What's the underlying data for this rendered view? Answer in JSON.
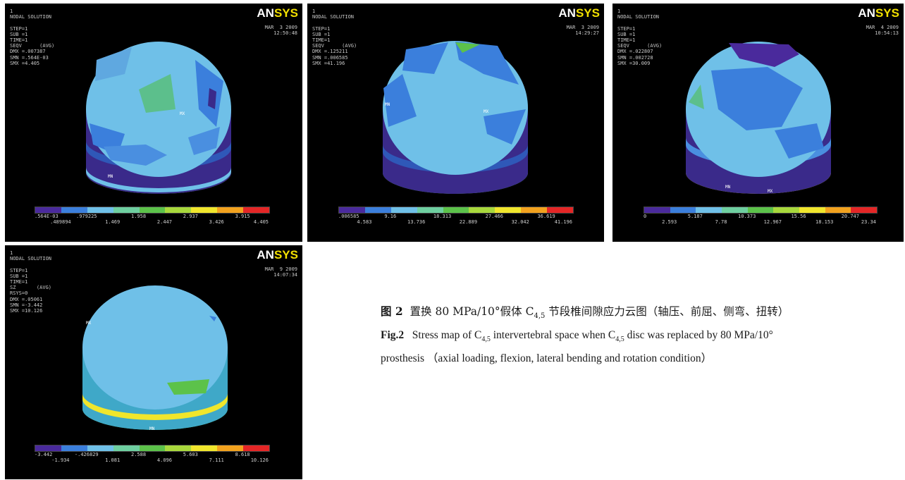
{
  "panels": [
    {
      "id": "p1",
      "info_lines": [
        "1",
        "NODAL SOLUTION",
        "",
        "STEP=1",
        "SUB =1",
        "TIME=1",
        "SEQV      (AVG)",
        "DMX =.007387",
        "SMN =.564E-03",
        "SMX =4.405"
      ],
      "date": [
        "MAR  3 2009",
        "12:50:48"
      ],
      "node_labels": [
        "MX",
        "MN"
      ],
      "legend_ticks_top": [
        ".564E-03",
        ".979225",
        "1.958",
        "2.937",
        "3.915"
      ],
      "legend_ticks_bottom": [
        ".489894",
        "1.469",
        "2.447",
        "3.426",
        "4.405"
      ]
    },
    {
      "id": "p2",
      "info_lines": [
        "1",
        "NODAL SOLUTION",
        "",
        "STEP=1",
        "SUB =1",
        "TIME=1",
        "SEQV      (AVG)",
        "DMX =.125211",
        "SMN =.006585",
        "SMX =41.196"
      ],
      "date": [
        "MAR  3 2009",
        "14:29:27"
      ],
      "node_labels": [
        "MN",
        "MX"
      ],
      "legend_ticks_top": [
        ".006585",
        "9.16",
        "18.313",
        "27.466",
        "36.619"
      ],
      "legend_ticks_bottom": [
        "4.583",
        "13.736",
        "22.889",
        "32.042",
        "41.196"
      ]
    },
    {
      "id": "p3",
      "info_lines": [
        "1",
        "NODAL SOLUTION",
        "",
        "STEP=1",
        "SUB =1",
        "TIME=1",
        "SEQV      (AVG)",
        "DMX =.022807",
        "SMN =.002728",
        "SMX =30.009"
      ],
      "date": [
        "MAR  4 2009",
        "10:54:13"
      ],
      "node_labels": [
        "MN",
        "MX"
      ],
      "legend_ticks_top": [
        "0",
        "5.187",
        "10.373",
        "15.56",
        "20.747"
      ],
      "legend_ticks_bottom": [
        "2.593",
        "7.78",
        "12.967",
        "18.153",
        "23.34"
      ]
    },
    {
      "id": "p4",
      "info_lines": [
        "1",
        "NODAL SOLUTION",
        "",
        "STEP=1",
        "SUB =1",
        "TIME=1",
        "SZ       (AVG)",
        "RSYS=0",
        "DMX =.05061",
        "SMN =-3.442",
        "SMX =10.126"
      ],
      "date": [
        "MAR  9 2009",
        "14:07:34"
      ],
      "node_labels": [
        "MX",
        "MN"
      ],
      "legend_ticks_top": [
        "-3.442",
        "-.426829",
        "2.588",
        "5.603",
        "8.618"
      ],
      "legend_ticks_bottom": [
        "-1.934",
        "1.081",
        "4.096",
        "7.111",
        "10.126"
      ]
    }
  ],
  "logo": {
    "part1": "AN",
    "part2": "SYS"
  },
  "legend_colors": [
    "#4a2a9c",
    "#3b7fdc",
    "#6fc0e8",
    "#6ecfa0",
    "#5cc24a",
    "#a8d83c",
    "#f0e62c",
    "#f2a21e",
    "#e42626"
  ],
  "caption": {
    "zh_label": "图 2",
    "zh_text_a": "置换 80 MPa/10°假体 C",
    "zh_sub": "4,5",
    "zh_text_b": " 节段椎间隙应力云图（轴压、前屈、侧弯、扭转）",
    "en_label": "Fig.2",
    "en_text_a": "Stress map of C",
    "en_sub_a": "4,5",
    "en_text_b": " intervertebral space when C",
    "en_sub_b": "4,5",
    "en_text_c": " disc was replaced by 80 MPa/10° prosthesis （axial loading, flexion, lateral bending and rotation condition）"
  }
}
